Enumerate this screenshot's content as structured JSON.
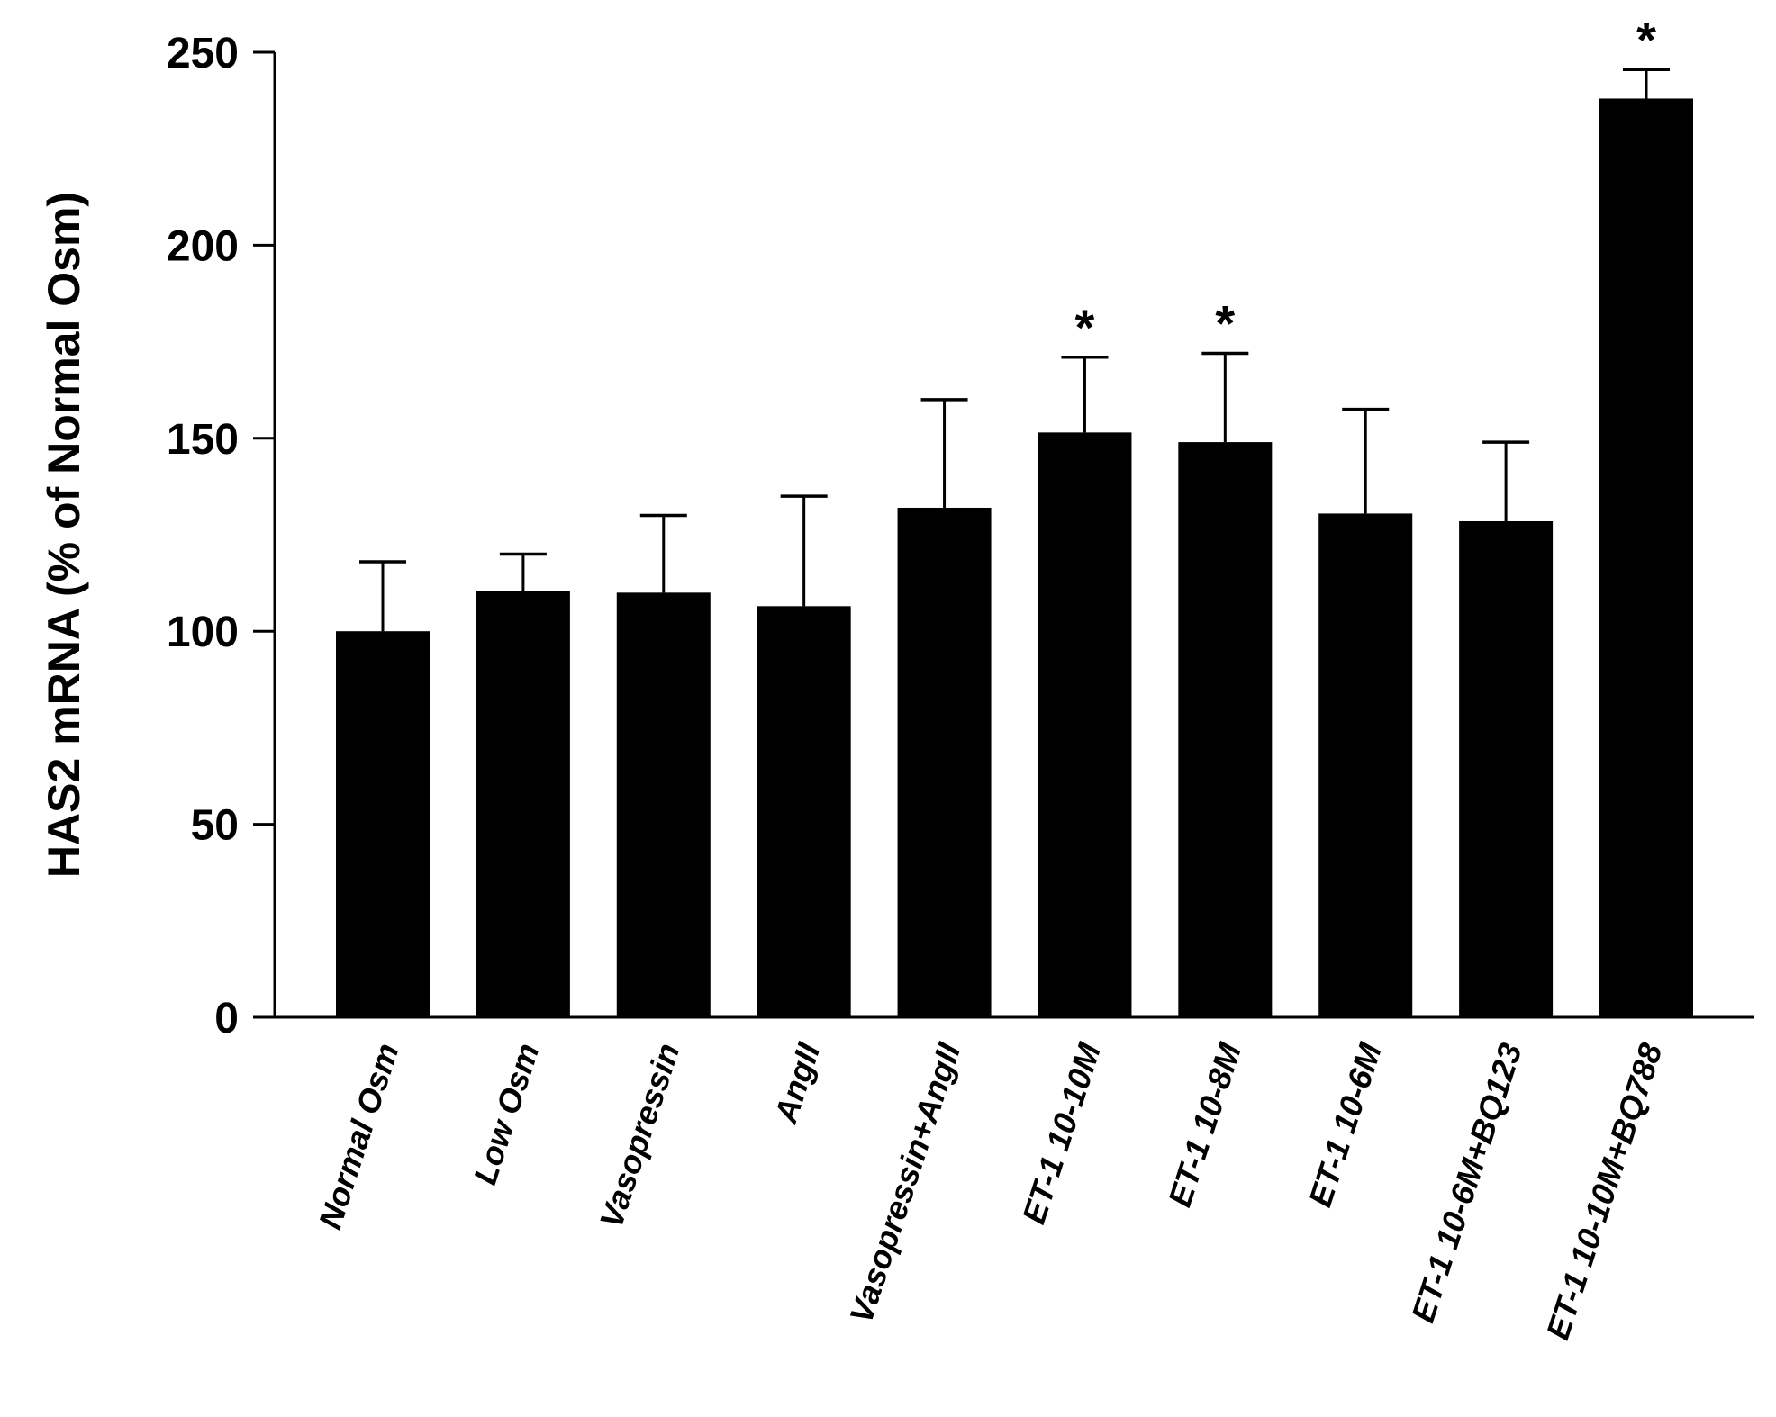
{
  "chart_data": {
    "type": "bar",
    "title": "",
    "xlabel": "",
    "ylabel": "HAS2 mRNA (% of Normal Osm)",
    "ylim": [
      0,
      250
    ],
    "yticks": [
      0,
      50,
      100,
      150,
      200,
      250
    ],
    "grid": false,
    "bar_color": "#000000",
    "categories": [
      "Normal Osm",
      "Low Osm",
      "Vasopressin",
      "AngII",
      "Vasopressin+AngII",
      "ET-1 10-10M",
      "ET-1 10-8M",
      "ET-1 10-6M",
      "ET-1 10-6M+BQ123",
      "ET-1 10-10M+BQ788"
    ],
    "values": [
      100,
      110.5,
      110,
      106.5,
      132,
      151.5,
      149,
      130.5,
      128.5,
      238
    ],
    "error_upper": [
      118,
      120,
      130,
      135,
      160,
      171,
      172,
      157.5,
      149,
      245.5
    ],
    "annotations": [
      "",
      "",
      "",
      "",
      "",
      "*",
      "*",
      "",
      "",
      "*"
    ]
  }
}
